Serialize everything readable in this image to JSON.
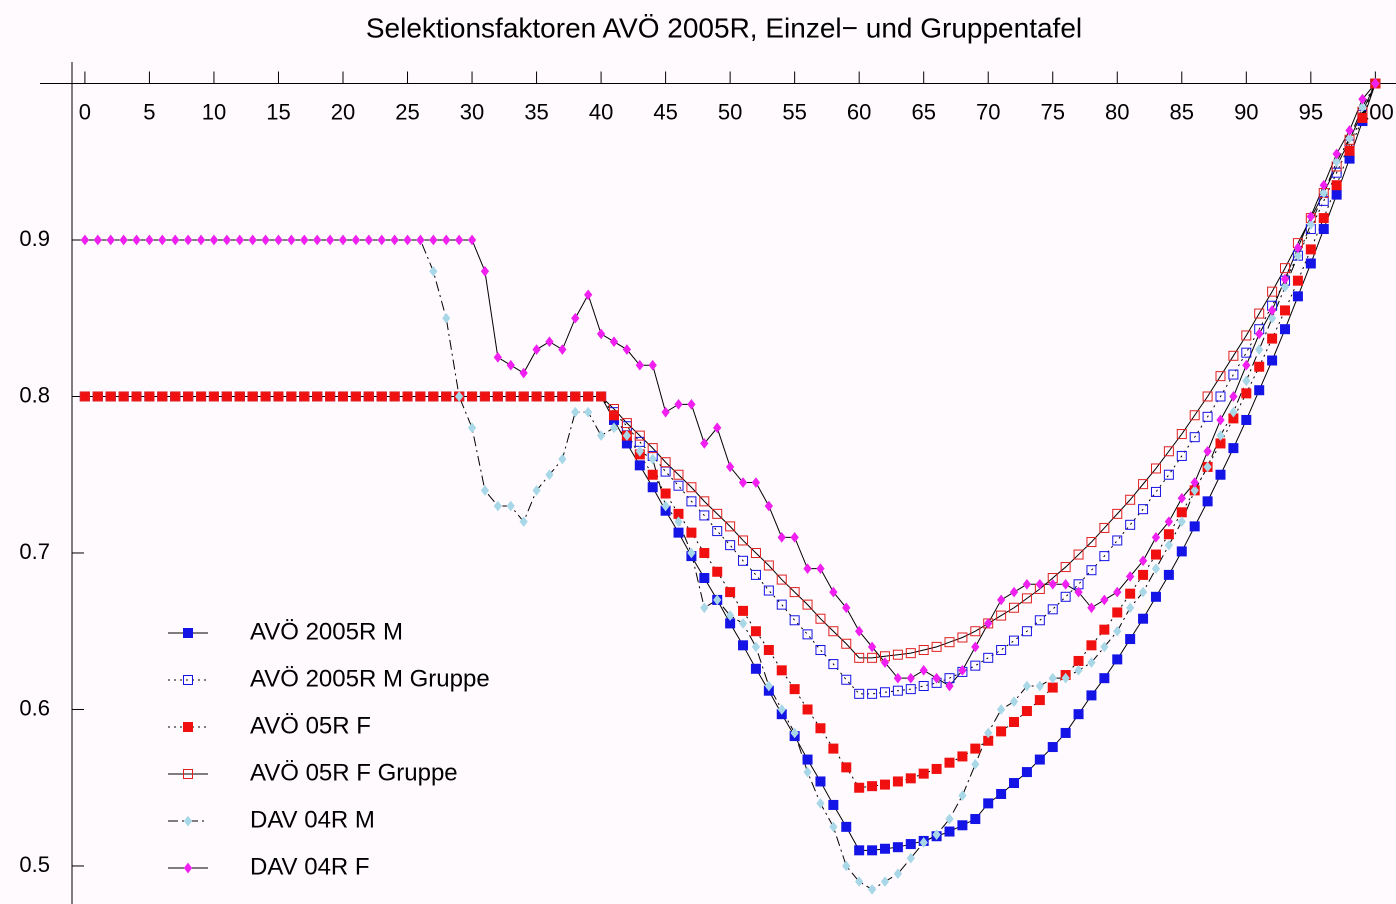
{
  "chart_data": {
    "type": "line",
    "title": "Selektionsfaktoren AVÖ 2005R, Einzel− und Gruppentafel",
    "x": [
      0,
      1,
      2,
      3,
      4,
      5,
      6,
      7,
      8,
      9,
      10,
      11,
      12,
      13,
      14,
      15,
      16,
      17,
      18,
      19,
      20,
      21,
      22,
      23,
      24,
      25,
      26,
      27,
      28,
      29,
      30,
      31,
      32,
      33,
      34,
      35,
      36,
      37,
      38,
      39,
      40,
      41,
      42,
      43,
      44,
      45,
      46,
      47,
      48,
      49,
      50,
      51,
      52,
      53,
      54,
      55,
      56,
      57,
      58,
      59,
      60,
      61,
      62,
      63,
      64,
      65,
      66,
      67,
      68,
      69,
      70,
      71,
      72,
      73,
      74,
      75,
      76,
      77,
      78,
      79,
      80,
      81,
      82,
      83,
      84,
      85,
      86,
      87,
      88,
      89,
      90,
      91,
      92,
      93,
      94,
      95,
      96,
      97,
      98,
      99,
      100
    ],
    "xlim": [
      -1,
      101.6
    ],
    "ylim": [
      0.4757,
      1.0
    ],
    "xticks": [
      0,
      5,
      10,
      15,
      20,
      25,
      30,
      35,
      40,
      45,
      50,
      55,
      60,
      65,
      70,
      75,
      80,
      85,
      90,
      95,
      100
    ],
    "yticks": [
      0.5,
      0.6,
      0.7,
      0.8,
      0.9
    ],
    "legend": "lower left",
    "series": [
      {
        "name": "AVÖ 2005R M",
        "color": "#1414e6",
        "marker": "square",
        "filled": true,
        "dash": "solid",
        "values": [
          0.8,
          0.8,
          0.8,
          0.8,
          0.8,
          0.8,
          0.8,
          0.8,
          0.8,
          0.8,
          0.8,
          0.8,
          0.8,
          0.8,
          0.8,
          0.8,
          0.8,
          0.8,
          0.8,
          0.8,
          0.8,
          0.8,
          0.8,
          0.8,
          0.8,
          0.8,
          0.8,
          0.8,
          0.8,
          0.8,
          0.8,
          0.8,
          0.8,
          0.8,
          0.8,
          0.8,
          0.8,
          0.8,
          0.8,
          0.8,
          0.8,
          0.785,
          0.77,
          0.756,
          0.742,
          0.727,
          0.713,
          0.698,
          0.684,
          0.67,
          0.655,
          0.641,
          0.626,
          0.612,
          0.597,
          0.583,
          0.568,
          0.554,
          0.539,
          0.525,
          0.51,
          0.51,
          0.511,
          0.512,
          0.514,
          0.516,
          0.519,
          0.522,
          0.526,
          0.53,
          0.54,
          0.546,
          0.553,
          0.56,
          0.568,
          0.576,
          0.585,
          0.597,
          0.609,
          0.62,
          0.632,
          0.645,
          0.658,
          0.672,
          0.686,
          0.701,
          0.717,
          0.733,
          0.75,
          0.767,
          0.785,
          0.804,
          0.823,
          0.843,
          0.864,
          0.885,
          0.907,
          0.929,
          0.952,
          0.976,
          1.0
        ]
      },
      {
        "name": "AVÖ 2005R M Gruppe",
        "color": "#1414e6",
        "marker": "square",
        "filled": false,
        "dash": "dotted",
        "values": [
          0.8,
          0.8,
          0.8,
          0.8,
          0.8,
          0.8,
          0.8,
          0.8,
          0.8,
          0.8,
          0.8,
          0.8,
          0.8,
          0.8,
          0.8,
          0.8,
          0.8,
          0.8,
          0.8,
          0.8,
          0.8,
          0.8,
          0.8,
          0.8,
          0.8,
          0.8,
          0.8,
          0.8,
          0.8,
          0.8,
          0.8,
          0.8,
          0.8,
          0.8,
          0.8,
          0.8,
          0.8,
          0.8,
          0.8,
          0.8,
          0.8,
          0.79,
          0.781,
          0.771,
          0.762,
          0.752,
          0.743,
          0.733,
          0.724,
          0.714,
          0.705,
          0.695,
          0.686,
          0.676,
          0.667,
          0.657,
          0.648,
          0.638,
          0.629,
          0.619,
          0.61,
          0.61,
          0.611,
          0.612,
          0.613,
          0.615,
          0.617,
          0.62,
          0.624,
          0.628,
          0.633,
          0.638,
          0.644,
          0.65,
          0.657,
          0.664,
          0.672,
          0.68,
          0.689,
          0.698,
          0.708,
          0.718,
          0.728,
          0.739,
          0.75,
          0.762,
          0.774,
          0.787,
          0.8,
          0.814,
          0.828,
          0.843,
          0.858,
          0.874,
          0.89,
          0.907,
          0.925,
          0.943,
          0.961,
          0.98,
          1.0
        ]
      },
      {
        "name": "AVÖ 05R F",
        "color": "#f01010",
        "marker": "square",
        "filled": true,
        "dash": "dotted",
        "values": [
          0.8,
          0.8,
          0.8,
          0.8,
          0.8,
          0.8,
          0.8,
          0.8,
          0.8,
          0.8,
          0.8,
          0.8,
          0.8,
          0.8,
          0.8,
          0.8,
          0.8,
          0.8,
          0.8,
          0.8,
          0.8,
          0.8,
          0.8,
          0.8,
          0.8,
          0.8,
          0.8,
          0.8,
          0.8,
          0.8,
          0.8,
          0.8,
          0.8,
          0.8,
          0.8,
          0.8,
          0.8,
          0.8,
          0.8,
          0.8,
          0.8,
          0.788,
          0.775,
          0.763,
          0.75,
          0.738,
          0.725,
          0.713,
          0.7,
          0.688,
          0.675,
          0.663,
          0.65,
          0.638,
          0.625,
          0.613,
          0.6,
          0.588,
          0.575,
          0.563,
          0.55,
          0.551,
          0.552,
          0.554,
          0.556,
          0.559,
          0.562,
          0.566,
          0.57,
          0.575,
          0.58,
          0.586,
          0.592,
          0.599,
          0.606,
          0.614,
          0.622,
          0.631,
          0.641,
          0.651,
          0.662,
          0.674,
          0.686,
          0.699,
          0.712,
          0.726,
          0.74,
          0.755,
          0.77,
          0.786,
          0.802,
          0.819,
          0.837,
          0.855,
          0.874,
          0.894,
          0.914,
          0.935,
          0.957,
          0.978,
          1.0
        ]
      },
      {
        "name": "AVÖ 05R F Gruppe",
        "color": "#e02020",
        "marker": "square",
        "filled": false,
        "dash": "solid",
        "values": [
          0.8,
          0.8,
          0.8,
          0.8,
          0.8,
          0.8,
          0.8,
          0.8,
          0.8,
          0.8,
          0.8,
          0.8,
          0.8,
          0.8,
          0.8,
          0.8,
          0.8,
          0.8,
          0.8,
          0.8,
          0.8,
          0.8,
          0.8,
          0.8,
          0.8,
          0.8,
          0.8,
          0.8,
          0.8,
          0.8,
          0.8,
          0.8,
          0.8,
          0.8,
          0.8,
          0.8,
          0.8,
          0.8,
          0.8,
          0.8,
          0.8,
          0.792,
          0.783,
          0.775,
          0.767,
          0.758,
          0.75,
          0.742,
          0.733,
          0.725,
          0.717,
          0.708,
          0.7,
          0.692,
          0.683,
          0.675,
          0.667,
          0.658,
          0.65,
          0.642,
          0.633,
          0.633,
          0.634,
          0.635,
          0.636,
          0.638,
          0.64,
          0.643,
          0.646,
          0.65,
          0.655,
          0.66,
          0.665,
          0.671,
          0.677,
          0.684,
          0.691,
          0.699,
          0.707,
          0.716,
          0.725,
          0.734,
          0.744,
          0.754,
          0.765,
          0.776,
          0.788,
          0.8,
          0.813,
          0.826,
          0.839,
          0.853,
          0.867,
          0.882,
          0.898,
          0.914,
          0.93,
          0.947,
          0.964,
          0.982,
          1.0
        ]
      },
      {
        "name": "DAV 04R M",
        "color": "#a8d8e8",
        "marker": "diamond",
        "filled": true,
        "dash": "dashdot",
        "values": [
          0.9,
          0.9,
          0.9,
          0.9,
          0.9,
          0.9,
          0.9,
          0.9,
          0.9,
          0.9,
          0.9,
          0.9,
          0.9,
          0.9,
          0.9,
          0.9,
          0.9,
          0.9,
          0.9,
          0.9,
          0.9,
          0.9,
          0.9,
          0.9,
          0.9,
          0.9,
          0.9,
          0.88,
          0.85,
          0.8,
          0.78,
          0.74,
          0.73,
          0.73,
          0.72,
          0.74,
          0.75,
          0.76,
          0.79,
          0.79,
          0.775,
          0.78,
          0.775,
          0.765,
          0.76,
          0.73,
          0.72,
          0.7,
          0.665,
          0.67,
          0.66,
          0.655,
          0.64,
          0.615,
          0.6,
          0.585,
          0.56,
          0.54,
          0.525,
          0.5,
          0.49,
          0.485,
          0.49,
          0.495,
          0.505,
          0.515,
          0.52,
          0.53,
          0.545,
          0.565,
          0.585,
          0.6,
          0.605,
          0.615,
          0.615,
          0.62,
          0.62,
          0.625,
          0.63,
          0.64,
          0.65,
          0.665,
          0.675,
          0.69,
          0.705,
          0.72,
          0.74,
          0.755,
          0.775,
          0.79,
          0.81,
          0.83,
          0.85,
          0.87,
          0.89,
          0.91,
          0.93,
          0.95,
          0.965,
          0.985,
          1.0
        ]
      },
      {
        "name": "DAV 04R F",
        "color": "#f020f0",
        "marker": "diamond",
        "filled": true,
        "dash": "solid",
        "values": [
          0.9,
          0.9,
          0.9,
          0.9,
          0.9,
          0.9,
          0.9,
          0.9,
          0.9,
          0.9,
          0.9,
          0.9,
          0.9,
          0.9,
          0.9,
          0.9,
          0.9,
          0.9,
          0.9,
          0.9,
          0.9,
          0.9,
          0.9,
          0.9,
          0.9,
          0.9,
          0.9,
          0.9,
          0.9,
          0.9,
          0.9,
          0.88,
          0.825,
          0.82,
          0.815,
          0.83,
          0.835,
          0.83,
          0.85,
          0.865,
          0.84,
          0.835,
          0.83,
          0.82,
          0.82,
          0.79,
          0.795,
          0.795,
          0.77,
          0.78,
          0.755,
          0.745,
          0.745,
          0.73,
          0.71,
          0.71,
          0.69,
          0.69,
          0.675,
          0.665,
          0.65,
          0.64,
          0.63,
          0.62,
          0.62,
          0.625,
          0.62,
          0.615,
          0.625,
          0.64,
          0.655,
          0.67,
          0.675,
          0.68,
          0.68,
          0.68,
          0.68,
          0.675,
          0.665,
          0.67,
          0.675,
          0.685,
          0.695,
          0.71,
          0.72,
          0.735,
          0.745,
          0.765,
          0.785,
          0.8,
          0.82,
          0.84,
          0.855,
          0.875,
          0.895,
          0.915,
          0.935,
          0.955,
          0.97,
          0.99,
          1.0
        ]
      }
    ]
  }
}
